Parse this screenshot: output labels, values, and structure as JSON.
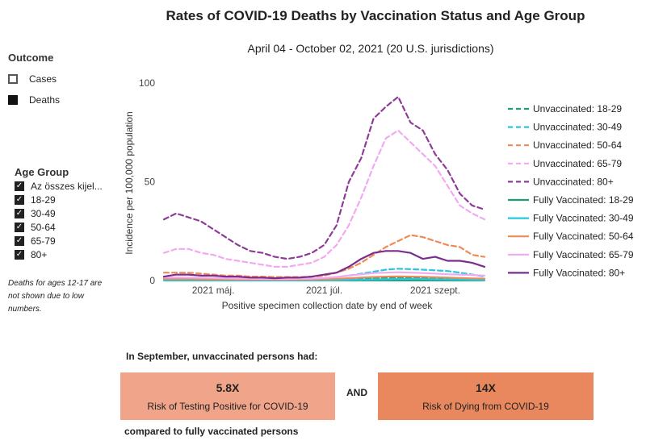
{
  "title": "Rates of COVID-19 Deaths by Vaccination Status and Age Group",
  "subtitle": "April 04 - October 02, 2021 (20 U.S. jurisdictions)",
  "outcome": {
    "heading": "Outcome",
    "items": [
      {
        "label": "Cases",
        "selected": false
      },
      {
        "label": "Deaths",
        "selected": true
      }
    ]
  },
  "age_group": {
    "heading": "Age Group",
    "items": [
      {
        "label": "Az összes kijel...",
        "checked": true
      },
      {
        "label": "18-29",
        "checked": true
      },
      {
        "label": "30-49",
        "checked": true
      },
      {
        "label": "50-64",
        "checked": true
      },
      {
        "label": "65-79",
        "checked": true
      },
      {
        "label": "80+",
        "checked": true
      }
    ]
  },
  "note": "Deaths for ages 12-17 are not shown due to low numbers.",
  "summary": {
    "heading": "In September, unvaccinated persons had:",
    "left_value": "5.8X",
    "left_label": "Risk of Testing Positive for COVID-19",
    "and": "AND",
    "right_value": "14X",
    "right_label": "Risk of Dying from COVID-19",
    "footer": "compared to fully vaccinated persons"
  },
  "chart_data": {
    "type": "line",
    "xlabel": "Positive specimen collection date by end of week",
    "ylabel": "Incidence per 100,000 population",
    "ylim": [
      0,
      100
    ],
    "yticks": [
      0,
      50,
      100
    ],
    "xtick_labels": [
      "2021 máj.",
      "2021 júl.",
      "2021 szept."
    ],
    "xtick_positions": [
      4,
      13,
      22
    ],
    "grid": false,
    "legend_position": "right",
    "x": [
      0,
      1,
      2,
      3,
      4,
      5,
      6,
      7,
      8,
      9,
      10,
      11,
      12,
      13,
      14,
      15,
      16,
      17,
      18,
      19,
      20,
      21,
      22,
      23,
      24,
      25,
      26
    ],
    "series": [
      {
        "name": "Unvaccinated: 18-29",
        "color": "#1a9e77",
        "dashed": true,
        "values": [
          0.6,
          0.6,
          0.5,
          0.5,
          0.4,
          0.4,
          0.3,
          0.3,
          0.3,
          0.3,
          0.3,
          0.3,
          0.4,
          0.5,
          0.6,
          0.8,
          1.0,
          1.2,
          1.4,
          1.5,
          1.4,
          1.3,
          1.2,
          1.1,
          1.0,
          0.9,
          0.8
        ]
      },
      {
        "name": "Unvaccinated: 30-49",
        "color": "#22c9e0",
        "dashed": true,
        "values": [
          1.2,
          1.2,
          1.1,
          1.0,
          0.9,
          0.8,
          0.7,
          0.6,
          0.6,
          0.6,
          0.6,
          0.7,
          0.9,
          1.2,
          1.8,
          2.5,
          3.5,
          4.5,
          5.5,
          6.0,
          5.8,
          5.5,
          5.2,
          4.8,
          4.0,
          3.0,
          2.0
        ]
      },
      {
        "name": "Unvaccinated: 50-64",
        "color": "#f08a55",
        "dashed": true,
        "values": [
          4,
          4,
          4,
          3.5,
          3,
          2.5,
          2.5,
          2,
          2,
          1.8,
          1.8,
          1.8,
          2,
          2.5,
          4,
          6,
          9,
          13,
          17,
          20,
          23,
          22,
          20,
          18,
          17,
          13,
          12
        ]
      },
      {
        "name": "Unvaccinated: 65-79",
        "color": "#f3a8f2",
        "dashed": true,
        "values": [
          14,
          16,
          16,
          14,
          13,
          11,
          10,
          9,
          8,
          7,
          7,
          8,
          9,
          12,
          18,
          28,
          42,
          58,
          72,
          76,
          70,
          64,
          58,
          48,
          38,
          34,
          31
        ]
      },
      {
        "name": "Unvaccinated: 80+",
        "color": "#8e3c98",
        "dashed": true,
        "values": [
          31,
          34,
          32,
          30,
          26,
          22,
          18,
          15,
          14,
          12,
          11,
          12,
          14,
          18,
          28,
          50,
          62,
          82,
          88,
          93,
          80,
          76,
          64,
          56,
          44,
          38,
          36
        ]
      },
      {
        "name": "Fully Vaccinated: 18-29",
        "color": "#1a9e77",
        "dashed": false,
        "values": [
          0.1,
          0.1,
          0.1,
          0.1,
          0.1,
          0.1,
          0.1,
          0.1,
          0.1,
          0.1,
          0.1,
          0.1,
          0.1,
          0.1,
          0.1,
          0.1,
          0.1,
          0.1,
          0.1,
          0.1,
          0.1,
          0.1,
          0.1,
          0.1,
          0.1,
          0.1,
          0.1
        ]
      },
      {
        "name": "Fully Vaccinated: 30-49",
        "color": "#22c9e0",
        "dashed": false,
        "values": [
          0.2,
          0.2,
          0.2,
          0.2,
          0.1,
          0.1,
          0.1,
          0.1,
          0.1,
          0.1,
          0.1,
          0.1,
          0.1,
          0.2,
          0.3,
          0.4,
          0.5,
          0.6,
          0.7,
          0.8,
          0.8,
          0.8,
          0.7,
          0.6,
          0.5,
          0.4,
          0.3
        ]
      },
      {
        "name": "Fully Vaccinated: 50-64",
        "color": "#f08a55",
        "dashed": false,
        "values": [
          0.8,
          0.8,
          0.8,
          0.7,
          0.6,
          0.6,
          0.5,
          0.5,
          0.5,
          0.5,
          0.5,
          0.5,
          0.6,
          0.7,
          0.9,
          1.2,
          1.5,
          1.8,
          2.0,
          2.1,
          2.0,
          1.9,
          1.7,
          1.5,
          1.3,
          1.1,
          1.0
        ]
      },
      {
        "name": "Fully Vaccinated: 65-79",
        "color": "#f3a8f2",
        "dashed": false,
        "values": [
          1.5,
          1.6,
          1.5,
          1.4,
          1.3,
          1.1,
          1.0,
          0.9,
          0.8,
          0.8,
          0.8,
          0.9,
          1.0,
          1.3,
          1.8,
          2.5,
          3.2,
          3.8,
          4.0,
          4.2,
          4.0,
          3.8,
          3.5,
          3.2,
          3.0,
          2.8,
          2.5
        ]
      },
      {
        "name": "Fully Vaccinated: 80+",
        "color": "#7a2e8c",
        "dashed": false,
        "values": [
          2,
          3,
          3,
          2.5,
          2.5,
          2,
          2,
          1.5,
          1.5,
          1.2,
          1.5,
          1.5,
          2,
          3,
          4,
          7,
          11,
          14,
          15,
          15,
          14,
          11,
          12,
          10,
          10,
          9,
          7
        ]
      }
    ]
  }
}
